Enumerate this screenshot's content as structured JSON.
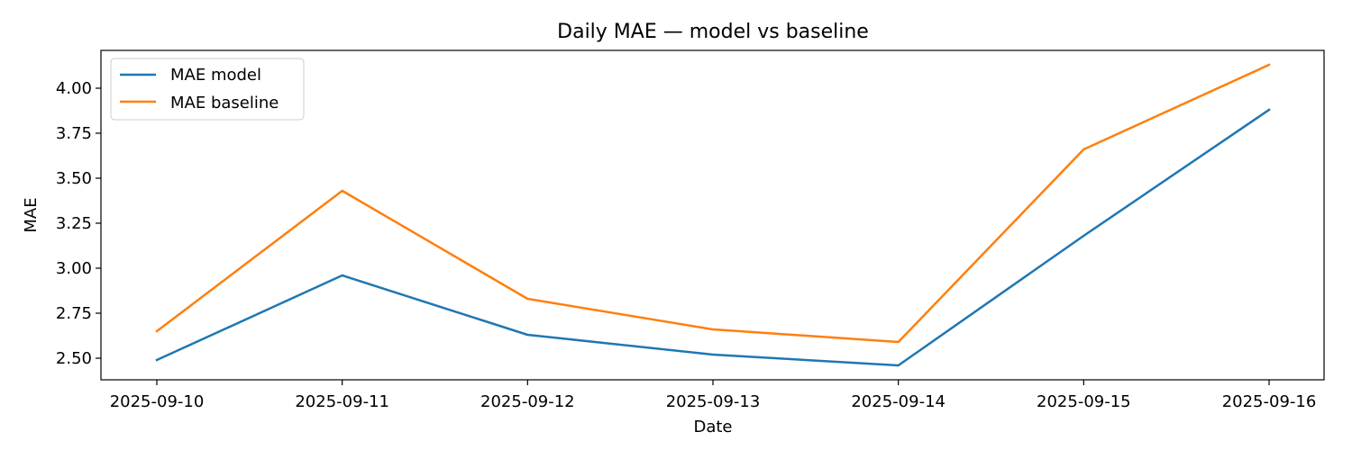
{
  "chart_data": {
    "type": "line",
    "title": "Daily MAE — model vs baseline",
    "xlabel": "Date",
    "ylabel": "MAE",
    "categories": [
      "2025-09-10",
      "2025-09-11",
      "2025-09-12",
      "2025-09-13",
      "2025-09-14",
      "2025-09-15",
      "2025-09-16"
    ],
    "yticks": [
      "2.50",
      "2.75",
      "3.00",
      "3.25",
      "3.50",
      "3.75",
      "4.00"
    ],
    "ylim": [
      2.38,
      4.21
    ],
    "grid": false,
    "legend_position": "top-left",
    "series": [
      {
        "name": "MAE model",
        "color": "#1f77b4",
        "values": [
          2.49,
          2.96,
          2.63,
          2.52,
          2.46,
          3.18,
          3.88
        ]
      },
      {
        "name": "MAE baseline",
        "color": "#ff7f0e",
        "values": [
          2.65,
          3.43,
          2.83,
          2.66,
          2.59,
          3.66,
          4.13
        ]
      }
    ]
  }
}
